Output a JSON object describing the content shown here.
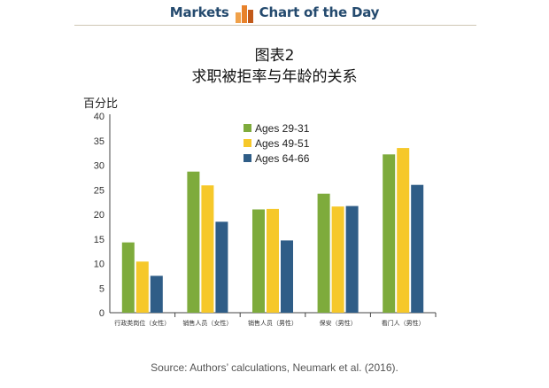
{
  "header": {
    "left_text": "Markets",
    "right_text": "Chart of the Day",
    "logo_colors": [
      "#f0a14a",
      "#e8822b",
      "#c25a1a"
    ]
  },
  "chart_data": {
    "type": "bar",
    "title_line1": "图表2",
    "title_line2": "求职被拒率与年龄的关系",
    "ylabel": "百分比",
    "ylim": [
      0,
      40
    ],
    "yticks": [
      0,
      5,
      10,
      15,
      20,
      25,
      30,
      35,
      40
    ],
    "categories": [
      "行政类岗位（女性）",
      "销售人员（女性）",
      "销售人员（男性）",
      "保安（男性）",
      "看门人（男性）"
    ],
    "series": [
      {
        "name": "Ages 29-31",
        "color": "#7eab3c",
        "values": [
          14.3,
          28.7,
          21.0,
          24.2,
          32.2
        ]
      },
      {
        "name": "Ages 49-51",
        "color": "#f6c82a",
        "values": [
          10.4,
          25.9,
          21.1,
          21.6,
          33.5
        ]
      },
      {
        "name": "Ages 64-66",
        "color": "#2f5d87",
        "values": [
          7.5,
          18.5,
          14.7,
          21.7,
          26.0
        ]
      }
    ],
    "legend_position": "top-center",
    "grid": false
  },
  "footer": {
    "source": "Source: Authors’ calculations, Neumark et al. (2016)."
  }
}
